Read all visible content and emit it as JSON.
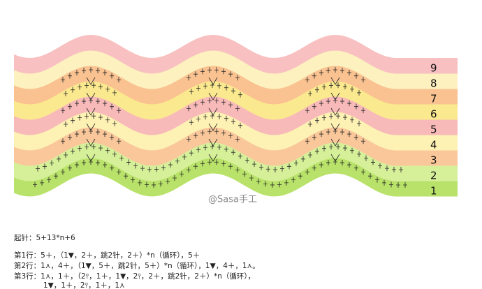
{
  "diagram": {
    "row_labels": [
      "1",
      "2",
      "3",
      "4",
      "5",
      "6",
      "7",
      "8",
      "9"
    ],
    "watermark": "@Sasa手工",
    "instructions": {
      "start": "起针：5+13*n+6",
      "lines": [
        "第1行：5＋，（1▼，2＋，跳2针，2＋）*n（循环），5＋",
        "第2行：1⋏，4＋，（1▼，5＋，跳2针，5＋）*n（循环），1▼，4＋，1⋏。",
        "第3行：1⋏，1＋，（2⫯，1＋，1▼，2⫯，2＋，跳2针，2＋）*n（循环），",
        "1▼，1＋，2⫯，1＋，1⋏"
      ]
    }
  }
}
